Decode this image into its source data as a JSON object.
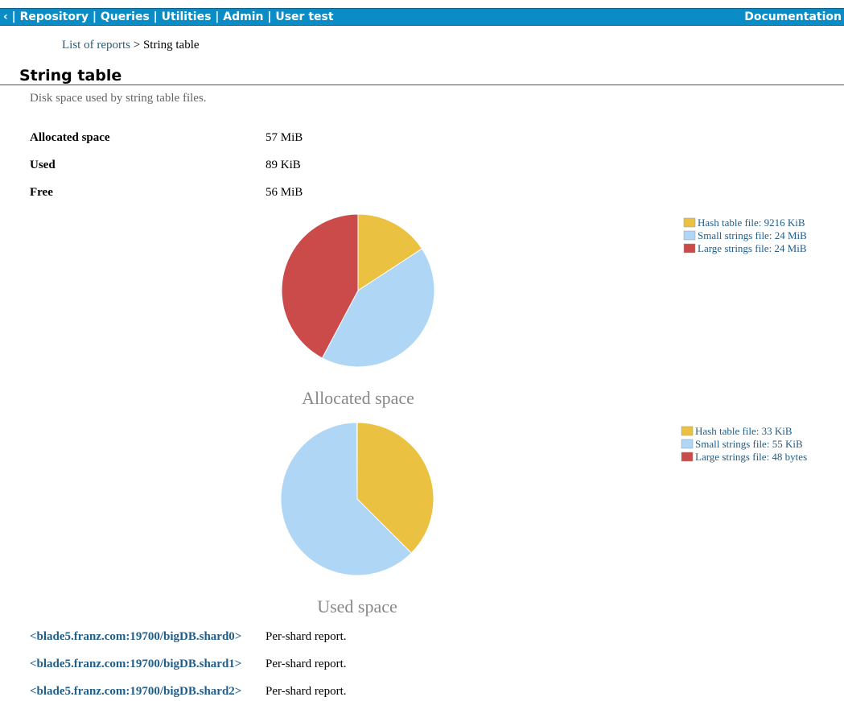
{
  "nav": {
    "items": [
      "‹ | Repository | Queries | Utilities | Admin | User test"
    ],
    "right": "Documentation"
  },
  "breadcrumb": {
    "link": "List of reports",
    "current": "> String table"
  },
  "header": {
    "title": "String table",
    "description": "Disk space used by string table files."
  },
  "table": {
    "rows": [
      [
        "Allocated space",
        "57 MiB"
      ],
      [
        "Used",
        "89 KiB"
      ],
      [
        "Free",
        "56 MiB"
      ]
    ]
  },
  "chart_data": [
    {
      "type": "pie",
      "title": "Allocated space",
      "labels": [
        "Hash table file: 9216 KiB",
        "Small strings file: 24 MiB",
        "Large strings file: 24 MiB"
      ],
      "values": [
        9216,
        24500,
        24652
      ],
      "colors": [
        "#ebc141",
        "#b0d6f5",
        "#cb4b4b"
      ]
    },
    {
      "type": "pie",
      "title": "Used space",
      "labels": [
        "Hash table file: 33 KiB",
        "Small strings file: 55 KiB",
        "Large strings file: 48 bytes"
      ],
      "values": [
        33,
        55,
        0.046875
      ],
      "colors": [
        "#ebc141",
        "#b0d6f5",
        "#cb4b4b"
      ]
    }
  ],
  "shards": [
    {
      "link": "<blade5.franz.com:19700/bigDB.shard0>",
      "text": "Per-shard report."
    },
    {
      "link": "<blade5.franz.com:19700/bigDB.shard1>",
      "text": "Per-shard report."
    },
    {
      "link": "<blade5.franz.com:19700/bigDB.shard2>",
      "text": "Per-shard report."
    }
  ]
}
